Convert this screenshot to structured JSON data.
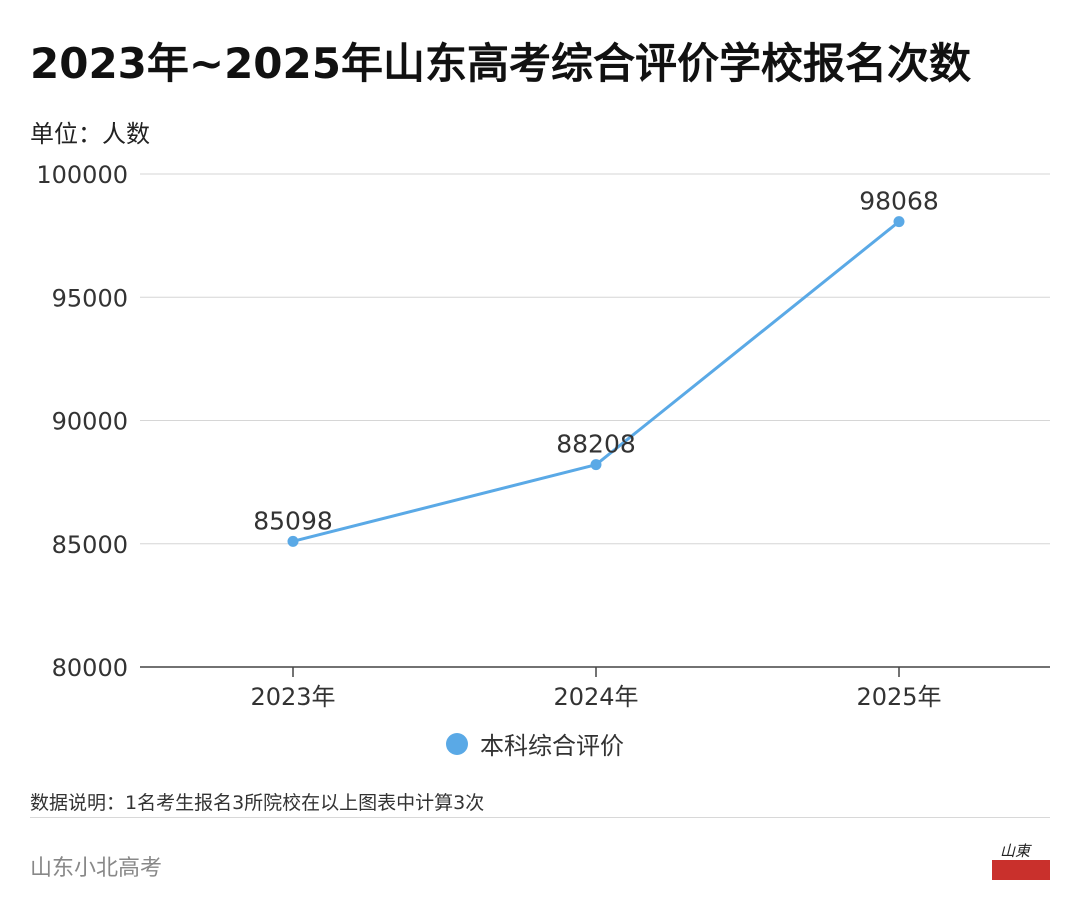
{
  "header": {
    "title": "2023年~2025年山东高考综合评价学校报名次数",
    "unit": "单位：人数"
  },
  "legend": {
    "label": "本科综合评价",
    "color": "#5aa9e6"
  },
  "footer": {
    "note": "数据说明：1名考生报名3所院校在以上图表中计算3次",
    "source": "山东小北高考",
    "logo_icon": "shandong-xiaobei-logo-icon"
  },
  "chart_data": {
    "type": "line",
    "categories": [
      "2023年",
      "2024年",
      "2025年"
    ],
    "series": [
      {
        "name": "本科综合评价",
        "values": [
          85098,
          88208,
          98068
        ],
        "color": "#5aa9e6"
      }
    ],
    "ylim": [
      80000,
      100000
    ],
    "yticks": [
      80000,
      85000,
      90000,
      95000,
      100000
    ],
    "grid": true,
    "legend_position": "bottom-center",
    "data_labels": true
  }
}
